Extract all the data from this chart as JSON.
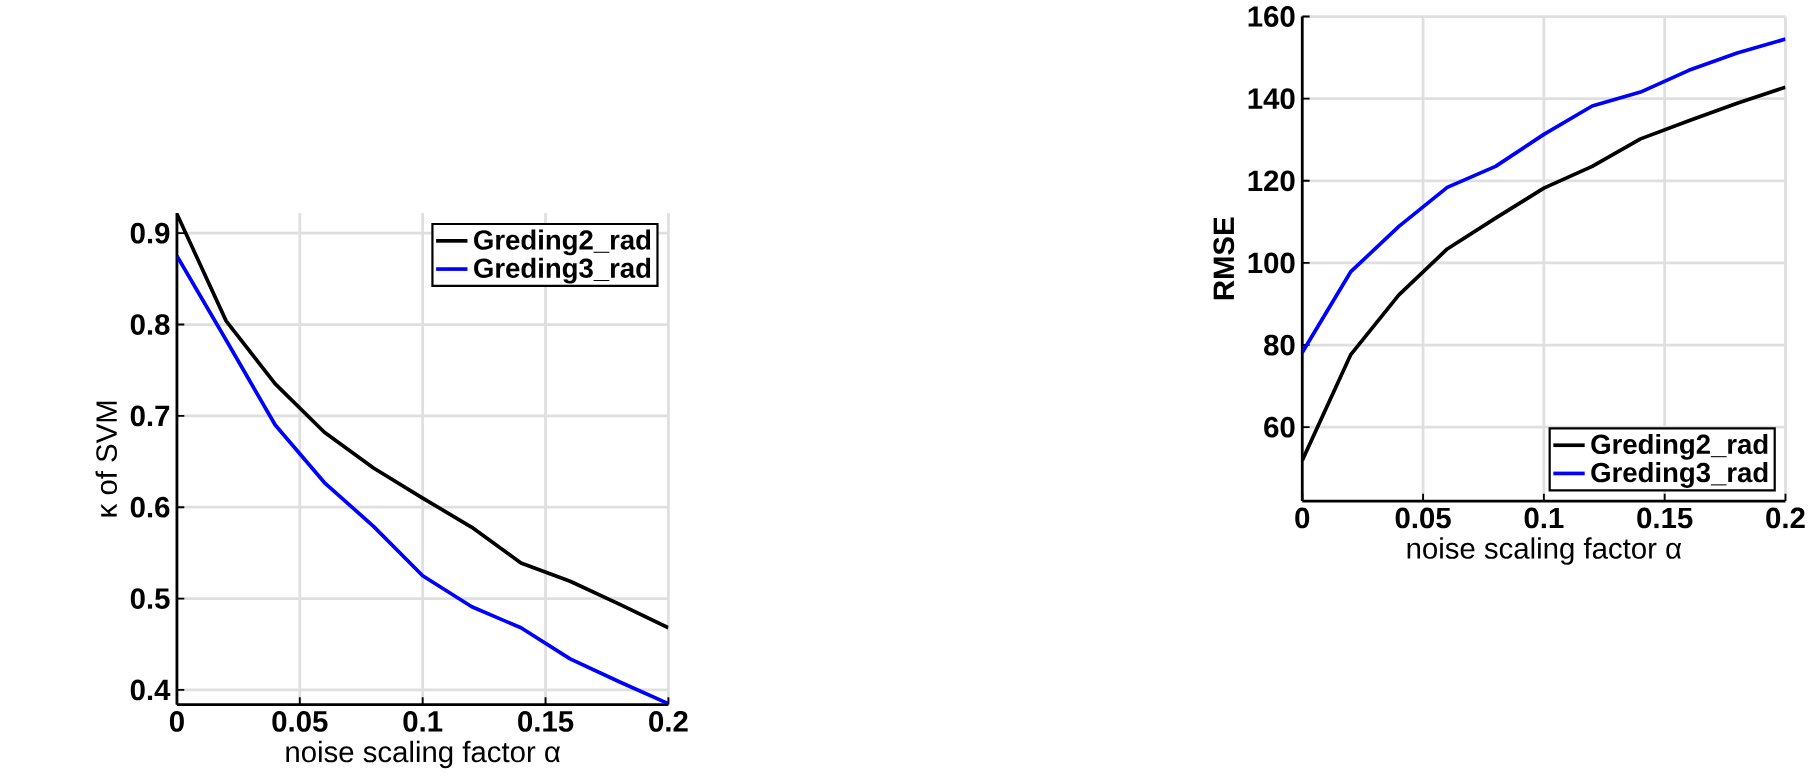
{
  "chart_data": [
    {
      "type": "line",
      "xlabel": "noise scaling factor α",
      "ylabel": "κ of SVM",
      "x": [
        0,
        0.02,
        0.04,
        0.06,
        0.08,
        0.1,
        0.12,
        0.14,
        0.16,
        0.18,
        0.2
      ],
      "series": [
        {
          "name": "Greding2_rad",
          "color": "#000000",
          "values": [
            0.921,
            0.804,
            0.735,
            0.682,
            0.643,
            0.61,
            0.578,
            0.539,
            0.519,
            0.494,
            0.468
          ]
        },
        {
          "name": "Greding3_rad",
          "color": "#0000ff",
          "values": [
            0.875,
            0.783,
            0.69,
            0.627,
            0.579,
            0.525,
            0.491,
            0.468,
            0.434,
            0.409,
            0.385
          ]
        }
      ],
      "xlim": [
        0,
        0.2
      ],
      "ylim": [
        0.384,
        0.922
      ],
      "xticks": [
        0,
        0.05,
        0.1,
        0.15,
        0.2
      ],
      "yticks": [
        0.4,
        0.5,
        0.6,
        0.7,
        0.8,
        0.9
      ],
      "grid": true,
      "legend": "top right"
    },
    {
      "type": "line",
      "xlabel": "noise scaling factor α",
      "ylabel": "RMSE",
      "x": [
        0,
        0.02,
        0.04,
        0.06,
        0.08,
        0.1,
        0.12,
        0.14,
        0.16,
        0.18,
        0.2
      ],
      "series": [
        {
          "name": "Greding2_rad",
          "color": "#000000",
          "values": [
            51.9,
            77.6,
            92.2,
            103.4,
            110.9,
            118.2,
            123.5,
            130.2,
            134.6,
            138.9,
            142.8
          ]
        },
        {
          "name": "Greding3_rad",
          "color": "#0000ff",
          "values": [
            78.2,
            97.8,
            108.9,
            118.4,
            123.5,
            131.3,
            138.2,
            141.6,
            146.9,
            151.1,
            154.5
          ]
        }
      ],
      "xlim": [
        0,
        0.2
      ],
      "ylim": [
        42,
        160
      ],
      "xticks": [
        0,
        0.05,
        0.1,
        0.15,
        0.2
      ],
      "yticks": [
        60,
        80,
        100,
        120,
        140,
        160
      ],
      "grid": true,
      "legend": "bottom right"
    }
  ]
}
